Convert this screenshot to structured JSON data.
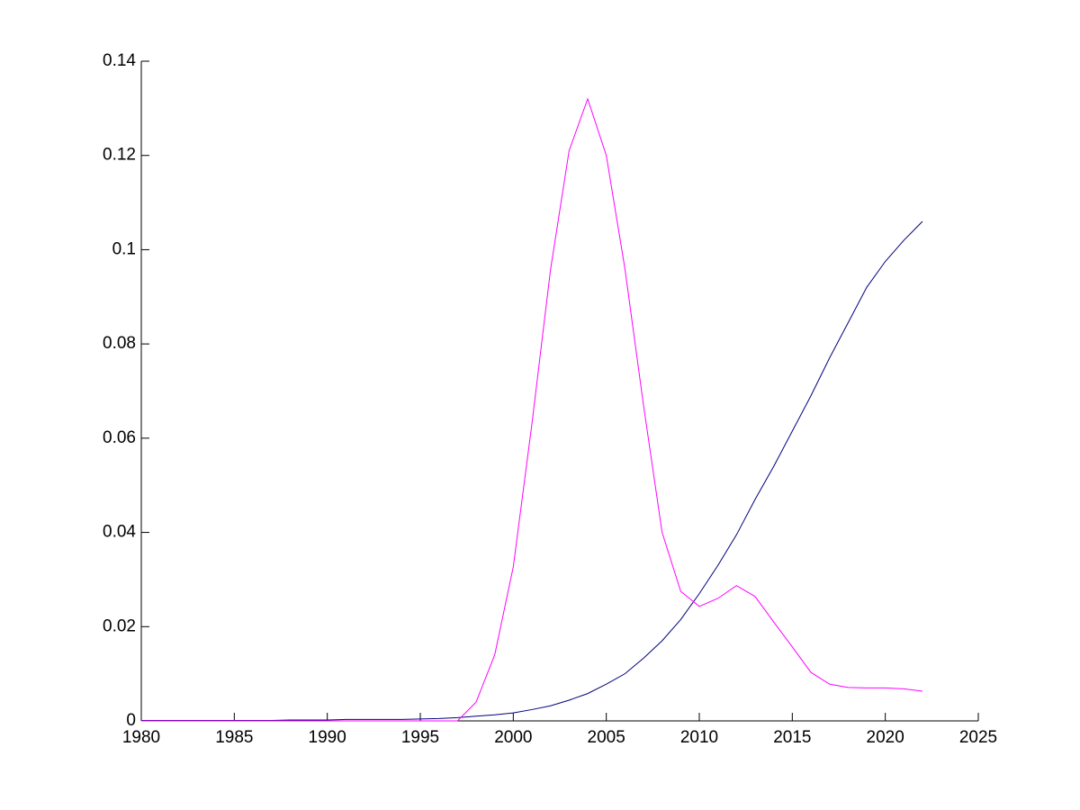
{
  "chart_data": {
    "type": "line",
    "x": [
      1980,
      1981,
      1982,
      1983,
      1984,
      1985,
      1986,
      1987,
      1988,
      1989,
      1990,
      1991,
      1992,
      1993,
      1994,
      1995,
      1996,
      1997,
      1998,
      1999,
      2000,
      2001,
      2002,
      2003,
      2004,
      2005,
      2006,
      2007,
      2008,
      2009,
      2010,
      2011,
      2012,
      2013,
      2014,
      2015,
      2016,
      2017,
      2018,
      2019,
      2020,
      2021,
      2022
    ],
    "series": [
      {
        "color": "#00007f",
        "values": [
          0.0001,
          0.0001,
          0.0001,
          0.0001,
          0.0001,
          0.0001,
          0.0001,
          0.0001,
          0.0002,
          0.0002,
          0.0002,
          0.0003,
          0.0003,
          0.0003,
          0.0003,
          0.0004,
          0.0005,
          0.0007,
          0.001,
          0.0013,
          0.0017,
          0.0024,
          0.0032,
          0.0044,
          0.0058,
          0.0078,
          0.01,
          0.0133,
          0.017,
          0.0215,
          0.027,
          0.033,
          0.0395,
          0.047,
          0.054,
          0.0615,
          0.069,
          0.077,
          0.0845,
          0.092,
          0.0975,
          0.102,
          0.106
        ]
      },
      {
        "color": "#ff00ff",
        "values": [
          0,
          0,
          0,
          0,
          0,
          0,
          0,
          0,
          0,
          0,
          0,
          0,
          0,
          0,
          0,
          0,
          0,
          0,
          0.004,
          0.014,
          0.0327,
          0.063,
          0.0957,
          0.121,
          0.132,
          0.12,
          0.096,
          0.067,
          0.04,
          0.0275,
          0.0243,
          0.026,
          0.0287,
          0.0264,
          0.021,
          0.0157,
          0.0103,
          0.0078,
          0.0071,
          0.007,
          0.007,
          0.0068,
          0.0063
        ]
      }
    ],
    "xlim": [
      1980,
      2025
    ],
    "xticks": [
      1980,
      1985,
      1990,
      1995,
      2000,
      2005,
      2010,
      2015,
      2020,
      2025
    ],
    "ylim": [
      0,
      0.14
    ],
    "yticks": [
      0,
      0.02,
      0.04,
      0.06,
      0.08,
      0.1,
      0.12,
      0.14
    ]
  }
}
